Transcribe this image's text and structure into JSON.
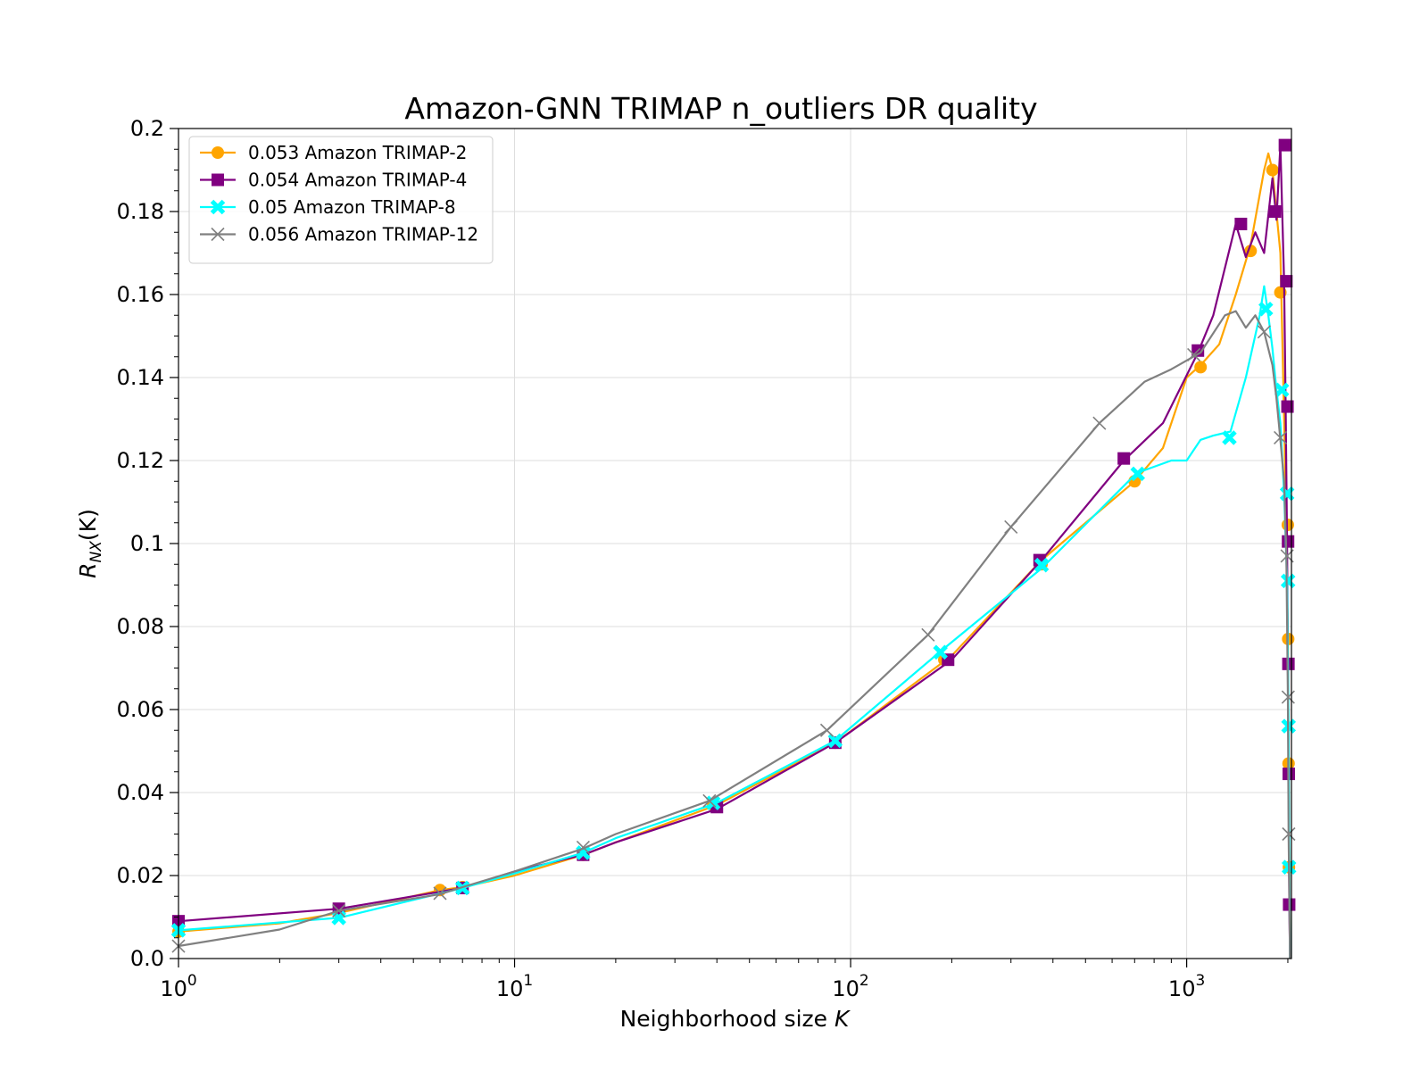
{
  "chart_data": {
    "type": "line",
    "title": "Amazon-GNN TRIMAP n_outliers DR quality",
    "xlabel_text": "Neighborhood size ",
    "xlabel_var": "K",
    "ylabel_main": "R",
    "ylabel_sub": "NX",
    "ylabel_arg": "(K)",
    "x_scale": "log",
    "xlim": [
      1,
      2050
    ],
    "ylim": [
      0.0,
      0.2
    ],
    "x_ticks": [
      {
        "value": 1,
        "base": "10",
        "exp": "0"
      },
      {
        "value": 10,
        "base": "10",
        "exp": "1"
      },
      {
        "value": 100,
        "base": "10",
        "exp": "2"
      },
      {
        "value": 1000,
        "base": "10",
        "exp": "3"
      }
    ],
    "y_ticks": [
      {
        "value": 0.0,
        "label": "0.0"
      },
      {
        "value": 0.02,
        "label": "0.02"
      },
      {
        "value": 0.04,
        "label": "0.04"
      },
      {
        "value": 0.06,
        "label": "0.06"
      },
      {
        "value": 0.08,
        "label": "0.08"
      },
      {
        "value": 0.1,
        "label": "0.1"
      },
      {
        "value": 0.12,
        "label": "0.12"
      },
      {
        "value": 0.14,
        "label": "0.14"
      },
      {
        "value": 0.16,
        "label": "0.16"
      },
      {
        "value": 0.18,
        "label": "0.18"
      },
      {
        "value": 0.2,
        "label": "0.2"
      }
    ],
    "grid": true,
    "legend_position": "top-left",
    "series": [
      {
        "name": "0.053 Amazon TRIMAP-2",
        "color": "#ffa500",
        "marker": "circle",
        "x": [
          1,
          2,
          3,
          6,
          7,
          10,
          16,
          20,
          40,
          90,
          200,
          370,
          700,
          850,
          1000,
          1100,
          1250,
          1400,
          1550,
          1700,
          1750,
          1800,
          1900,
          1950,
          1980,
          2000,
          2010,
          2020,
          2030
        ],
        "y": [
          0.0065,
          0.0085,
          0.011,
          0.0165,
          0.0172,
          0.02,
          0.025,
          0.028,
          0.037,
          0.052,
          0.073,
          0.096,
          0.115,
          0.123,
          0.14,
          0.143,
          0.148,
          0.16,
          0.172,
          0.19,
          0.194,
          0.19,
          0.17,
          0.13,
          0.104,
          0.077,
          0.047,
          0.022,
          0.0
        ],
        "markers": [
          {
            "x": 1,
            "y": 0.0065
          },
          {
            "x": 6,
            "y": 0.0165
          },
          {
            "x": 7,
            "y": 0.0172
          },
          {
            "x": 16,
            "y": 0.025
          },
          {
            "x": 39,
            "y": 0.037
          },
          {
            "x": 90,
            "y": 0.052
          },
          {
            "x": 190,
            "y": 0.072
          },
          {
            "x": 370,
            "y": 0.095
          },
          {
            "x": 700,
            "y": 0.115
          },
          {
            "x": 1100,
            "y": 0.1425
          },
          {
            "x": 1550,
            "y": 0.1705
          },
          {
            "x": 1800,
            "y": 0.19
          },
          {
            "x": 1900,
            "y": 0.1605
          },
          {
            "x": 2000,
            "y": 0.1045
          },
          {
            "x": 2005,
            "y": 0.077
          },
          {
            "x": 2010,
            "y": 0.047
          },
          {
            "x": 2015,
            "y": 0.022
          }
        ]
      },
      {
        "name": "0.054 Amazon TRIMAP-4",
        "color": "#800080",
        "marker": "square",
        "x": [
          1,
          3,
          7,
          10,
          16,
          20,
          40,
          90,
          200,
          370,
          650,
          850,
          1080,
          1200,
          1400,
          1500,
          1600,
          1700,
          1800,
          1850,
          1900,
          1950,
          1970,
          1990,
          2000,
          2010,
          2020,
          2030
        ],
        "y": [
          0.009,
          0.012,
          0.017,
          0.021,
          0.025,
          0.028,
          0.036,
          0.052,
          0.072,
          0.096,
          0.12,
          0.129,
          0.146,
          0.155,
          0.177,
          0.169,
          0.175,
          0.17,
          0.188,
          0.178,
          0.196,
          0.163,
          0.133,
          0.1,
          0.071,
          0.045,
          0.013,
          0.0
        ],
        "markers": [
          {
            "x": 1,
            "y": 0.009
          },
          {
            "x": 3,
            "y": 0.012
          },
          {
            "x": 7,
            "y": 0.017
          },
          {
            "x": 16,
            "y": 0.025
          },
          {
            "x": 40,
            "y": 0.0365
          },
          {
            "x": 90,
            "y": 0.052
          },
          {
            "x": 195,
            "y": 0.072
          },
          {
            "x": 365,
            "y": 0.096
          },
          {
            "x": 650,
            "y": 0.1205
          },
          {
            "x": 1080,
            "y": 0.1465
          },
          {
            "x": 1450,
            "y": 0.177
          },
          {
            "x": 1830,
            "y": 0.18
          },
          {
            "x": 1960,
            "y": 0.196
          },
          {
            "x": 1980,
            "y": 0.1632
          },
          {
            "x": 1995,
            "y": 0.133
          },
          {
            "x": 2003,
            "y": 0.1005
          },
          {
            "x": 2008,
            "y": 0.071
          },
          {
            "x": 2013,
            "y": 0.0445
          },
          {
            "x": 2018,
            "y": 0.013
          }
        ]
      },
      {
        "name": "0.05 Amazon TRIMAP-8",
        "color": "#00ffff",
        "marker": "x-filled",
        "x": [
          1,
          3,
          7,
          10,
          16,
          20,
          40,
          90,
          185,
          370,
          710,
          900,
          1000,
          1100,
          1200,
          1350,
          1500,
          1650,
          1700,
          1750,
          1800,
          1850,
          1900,
          1950,
          1990,
          2010,
          2020,
          2030
        ],
        "y": [
          0.0068,
          0.0098,
          0.017,
          0.0205,
          0.0255,
          0.029,
          0.0375,
          0.0525,
          0.074,
          0.094,
          0.117,
          0.12,
          0.12,
          0.125,
          0.126,
          0.127,
          0.14,
          0.155,
          0.162,
          0.155,
          0.147,
          0.137,
          0.129,
          0.112,
          0.091,
          0.056,
          0.022,
          0.0
        ],
        "markers": [
          {
            "x": 1,
            "y": 0.0068
          },
          {
            "x": 3,
            "y": 0.0098
          },
          {
            "x": 7,
            "y": 0.017
          },
          {
            "x": 16,
            "y": 0.0255
          },
          {
            "x": 39,
            "y": 0.0375
          },
          {
            "x": 90,
            "y": 0.0525
          },
          {
            "x": 185,
            "y": 0.0738
          },
          {
            "x": 370,
            "y": 0.0948
          },
          {
            "x": 715,
            "y": 0.1168
          },
          {
            "x": 1340,
            "y": 0.1255
          },
          {
            "x": 1720,
            "y": 0.1565
          },
          {
            "x": 1920,
            "y": 0.137
          },
          {
            "x": 1990,
            "y": 0.112
          },
          {
            "x": 2003,
            "y": 0.091
          },
          {
            "x": 2010,
            "y": 0.056
          },
          {
            "x": 2016,
            "y": 0.022
          }
        ]
      },
      {
        "name": "0.056 Amazon TRIMAP-12",
        "color": "#808080",
        "marker": "x",
        "x": [
          1,
          2,
          3,
          6,
          7,
          10,
          16,
          20,
          38,
          85,
          170,
          300,
          550,
          750,
          900,
          1100,
          1300,
          1400,
          1500,
          1600,
          1700,
          1800,
          1850,
          1900,
          1950,
          1980,
          2000,
          2010,
          2030
        ],
        "y": [
          0.003,
          0.007,
          0.0115,
          0.0155,
          0.0172,
          0.021,
          0.0265,
          0.03,
          0.038,
          0.055,
          0.078,
          0.104,
          0.129,
          0.139,
          0.142,
          0.146,
          0.155,
          0.156,
          0.152,
          0.155,
          0.151,
          0.143,
          0.135,
          0.125,
          0.115,
          0.097,
          0.063,
          0.03,
          0.0
        ],
        "markers": [
          {
            "x": 1,
            "y": 0.003
          },
          {
            "x": 3,
            "y": 0.0115
          },
          {
            "x": 6,
            "y": 0.0157
          },
          {
            "x": 16,
            "y": 0.0268
          },
          {
            "x": 38,
            "y": 0.038
          },
          {
            "x": 85,
            "y": 0.055
          },
          {
            "x": 170,
            "y": 0.078
          },
          {
            "x": 300,
            "y": 0.104
          },
          {
            "x": 550,
            "y": 0.129
          },
          {
            "x": 1050,
            "y": 0.1455
          },
          {
            "x": 1700,
            "y": 0.151
          },
          {
            "x": 1900,
            "y": 0.1255
          },
          {
            "x": 1990,
            "y": 0.097
          },
          {
            "x": 2005,
            "y": 0.063
          },
          {
            "x": 2012,
            "y": 0.03
          }
        ]
      }
    ]
  }
}
